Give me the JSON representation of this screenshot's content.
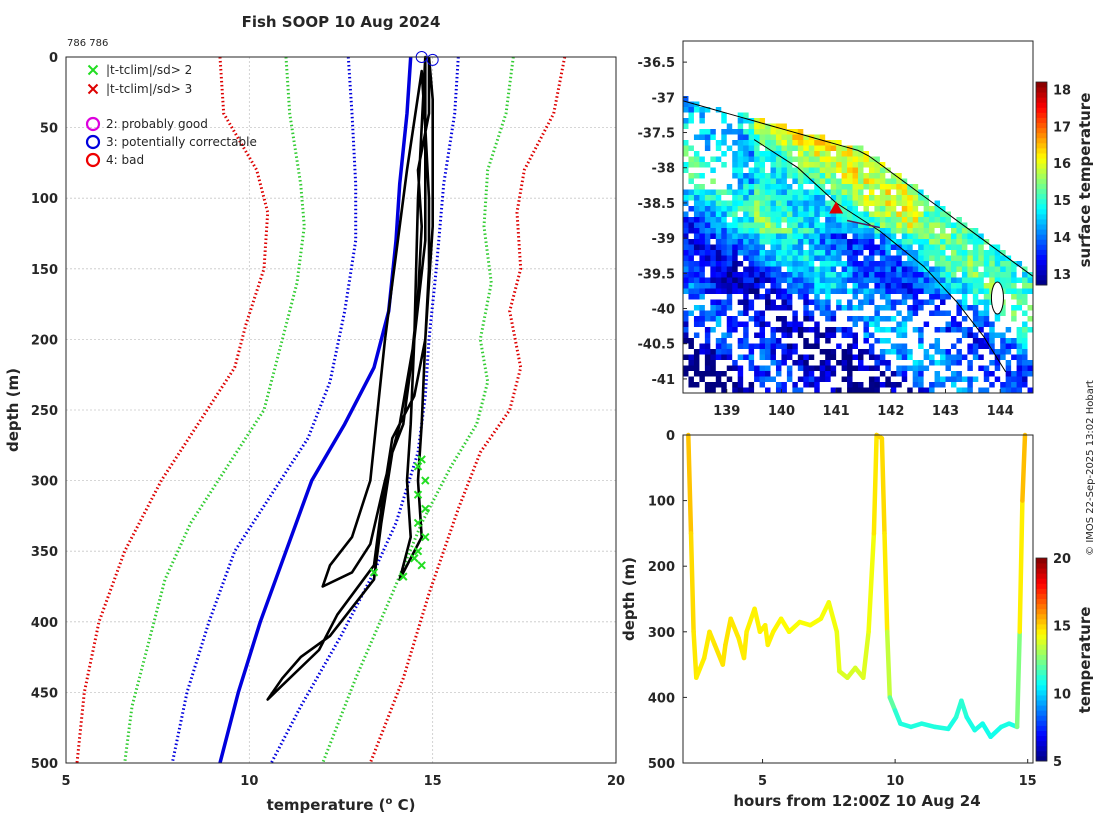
{
  "chart_data": [
    {
      "type": "line",
      "title": "Fish SOOP 10 Aug 2024",
      "subtitle": "786 786",
      "xlabel": "temperature (",
      "xlabel_sup": "o",
      "xlabel_end": " C)",
      "ylabel": "depth (m)",
      "xlim": [
        5,
        20
      ],
      "ylim": [
        500,
        0
      ],
      "xticks": [
        "5",
        "10",
        "15",
        "20"
      ],
      "yticks": [
        "0",
        "50",
        "100",
        "150",
        "200",
        "250",
        "300",
        "350",
        "400",
        "450",
        "500"
      ],
      "legend": [
        {
          "label": "|t-tclim|/sd> 2",
          "marker": "x",
          "color": "#22dd22"
        },
        {
          "label": "|t-tclim|/sd> 3",
          "marker": "x",
          "color": "#dd0000"
        },
        {
          "label": "2: probably good",
          "marker": "o",
          "color": "#dd00dd"
        },
        {
          "label": "3: potentially correctable",
          "marker": "o",
          "color": "#0000dd"
        },
        {
          "label": "4: bad",
          "marker": "o",
          "color": "#ee0000"
        }
      ],
      "series": [
        {
          "name": "clim -3sd",
          "color": "#dd0000",
          "style": "dotted",
          "points": [
            [
              9.2,
              0
            ],
            [
              9.3,
              40
            ],
            [
              10.2,
              80
            ],
            [
              10.5,
              110
            ],
            [
              10.4,
              150
            ],
            [
              9.9,
              190
            ],
            [
              9.6,
              220
            ],
            [
              8.6,
              260
            ],
            [
              7.6,
              300
            ],
            [
              6.6,
              350
            ],
            [
              5.9,
              400
            ],
            [
              5.5,
              450
            ],
            [
              5.3,
              500
            ]
          ]
        },
        {
          "name": "clim -2sd",
          "color": "#33cc33",
          "style": "dotted",
          "points": [
            [
              11.0,
              0
            ],
            [
              11.1,
              40
            ],
            [
              11.4,
              90
            ],
            [
              11.5,
              120
            ],
            [
              11.3,
              160
            ],
            [
              10.8,
              210
            ],
            [
              10.4,
              250
            ],
            [
              9.4,
              290
            ],
            [
              8.4,
              330
            ],
            [
              7.7,
              370
            ],
            [
              7.2,
              420
            ],
            [
              6.8,
              460
            ],
            [
              6.6,
              500
            ]
          ]
        },
        {
          "name": "clim -1sd",
          "color": "#0000dd",
          "style": "dotted",
          "points": [
            [
              12.7,
              0
            ],
            [
              12.8,
              40
            ],
            [
              12.9,
              90
            ],
            [
              12.9,
              130
            ],
            [
              12.6,
              180
            ],
            [
              12.2,
              230
            ],
            [
              11.6,
              270
            ],
            [
              10.6,
              310
            ],
            [
              9.6,
              350
            ],
            [
              8.9,
              400
            ],
            [
              8.3,
              450
            ],
            [
              7.9,
              500
            ]
          ]
        },
        {
          "name": "climatology",
          "color": "#0000dd",
          "style": "solid",
          "points": [
            [
              14.4,
              0
            ],
            [
              14.3,
              40
            ],
            [
              14.1,
              90
            ],
            [
              14.0,
              130
            ],
            [
              13.8,
              180
            ],
            [
              13.4,
              220
            ],
            [
              12.6,
              260
            ],
            [
              11.7,
              300
            ],
            [
              11.0,
              350
            ],
            [
              10.3,
              400
            ],
            [
              9.7,
              450
            ],
            [
              9.2,
              500
            ]
          ]
        },
        {
          "name": "clim +1sd",
          "color": "#0000dd",
          "style": "dotted",
          "points": [
            [
              15.7,
              0
            ],
            [
              15.6,
              40
            ],
            [
              15.3,
              90
            ],
            [
              15.1,
              150
            ],
            [
              14.9,
              200
            ],
            [
              14.8,
              240
            ],
            [
              14.6,
              280
            ],
            [
              14.0,
              330
            ],
            [
              13.3,
              370
            ],
            [
              12.5,
              410
            ],
            [
              11.4,
              460
            ],
            [
              10.6,
              500
            ]
          ]
        },
        {
          "name": "clim +2sd",
          "color": "#33cc33",
          "style": "dotted",
          "points": [
            [
              17.2,
              0
            ],
            [
              17.0,
              40
            ],
            [
              16.5,
              80
            ],
            [
              16.4,
              120
            ],
            [
              16.6,
              160
            ],
            [
              16.3,
              200
            ],
            [
              16.5,
              230
            ],
            [
              16.2,
              260
            ],
            [
              15.5,
              290
            ],
            [
              14.7,
              330
            ],
            [
              13.9,
              380
            ],
            [
              12.9,
              440
            ],
            [
              12.0,
              500
            ]
          ]
        },
        {
          "name": "clim +3sd",
          "color": "#dd0000",
          "style": "dotted",
          "points": [
            [
              18.6,
              0
            ],
            [
              18.3,
              40
            ],
            [
              17.5,
              80
            ],
            [
              17.3,
              110
            ],
            [
              17.4,
              150
            ],
            [
              17.1,
              180
            ],
            [
              17.4,
              220
            ],
            [
              17.1,
              250
            ],
            [
              16.3,
              280
            ],
            [
              15.7,
              320
            ],
            [
              14.9,
              380
            ],
            [
              14.2,
              440
            ],
            [
              13.3,
              500
            ]
          ]
        },
        {
          "name": "profile",
          "color": "#000000",
          "style": "solid",
          "points": [
            [
              14.9,
              2
            ],
            [
              14.9,
              40
            ],
            [
              14.6,
              80
            ],
            [
              14.7,
              120
            ],
            [
              14.6,
              170
            ],
            [
              14.4,
              220
            ],
            [
              14.2,
              260
            ],
            [
              13.9,
              280
            ],
            [
              13.6,
              330
            ],
            [
              13.4,
              370
            ],
            [
              12.8,
              390
            ],
            [
              12.2,
              410
            ],
            [
              11.4,
              425
            ],
            [
              10.9,
              440
            ],
            [
              10.5,
              455
            ],
            [
              10.9,
              445
            ],
            [
              11.9,
              420
            ],
            [
              12.4,
              395
            ],
            [
              13.4,
              360
            ],
            [
              13.6,
              320
            ],
            [
              13.9,
              270
            ],
            [
              14.5,
              240
            ],
            [
              14.8,
              200
            ],
            [
              14.9,
              150
            ],
            [
              14.9,
              100
            ],
            [
              14.8,
              50
            ],
            [
              14.7,
              10
            ],
            [
              14.3,
              80
            ],
            [
              13.7,
              200
            ],
            [
              13.3,
              300
            ],
            [
              12.8,
              340
            ],
            [
              12.2,
              360
            ],
            [
              12.0,
              375
            ],
            [
              12.8,
              365
            ],
            [
              13.3,
              345
            ],
            [
              13.7,
              300
            ],
            [
              14.1,
              260
            ],
            [
              14.5,
              200
            ],
            [
              14.8,
              130
            ],
            [
              14.8,
              60
            ],
            [
              14.8,
              0
            ],
            [
              14.6,
              100
            ],
            [
              14.5,
              200
            ],
            [
              14.4,
              260
            ],
            [
              14.3,
              300
            ],
            [
              14.4,
              340
            ],
            [
              14.1,
              370
            ],
            [
              14.7,
              340
            ],
            [
              14.6,
              300
            ],
            [
              14.7,
              260
            ],
            [
              14.8,
              200
            ],
            [
              15.0,
              120
            ],
            [
              15.0,
              30
            ],
            [
              14.9,
              0
            ]
          ]
        }
      ],
      "flag_x2": [
        [
          13.4,
          365
        ],
        [
          14.2,
          368
        ],
        [
          14.6,
          290
        ],
        [
          14.8,
          300
        ],
        [
          14.6,
          310
        ],
        [
          14.8,
          320
        ],
        [
          14.6,
          330
        ],
        [
          14.8,
          340
        ],
        [
          14.6,
          350
        ],
        [
          14.5,
          355
        ],
        [
          14.7,
          360
        ],
        [
          14.7,
          285
        ]
      ],
      "flag_circles": [
        [
          14.7,
          0
        ],
        [
          15.0,
          2
        ]
      ]
    },
    {
      "type": "heatmap",
      "xlim": [
        138.2,
        144.6
      ],
      "ylim": [
        -41.2,
        -36.2
      ],
      "xticks": [
        "139",
        "140",
        "141",
        "142",
        "143",
        "144"
      ],
      "yticks": [
        "-36.5",
        "-37",
        "-37.5",
        "-38",
        "-38.5",
        "-39",
        "-39.5",
        "-40",
        "-40.5",
        "-41"
      ],
      "colorbar_label": "surface temperature",
      "colorbar_range": [
        12.7,
        18.2
      ],
      "colorbar_ticks": [
        "13",
        "14",
        "15",
        "16",
        "17",
        "18"
      ],
      "marker": {
        "lon": 141.0,
        "lat": -38.58,
        "color": "#dd0000"
      },
      "track": [
        [
          141.2,
          -38.75
        ],
        [
          141.8,
          -38.85
        ]
      ]
    },
    {
      "type": "line",
      "xlabel": "hours from 12:00Z 10 Aug 24",
      "ylabel": "depth (m)",
      "xlim": [
        2.0,
        15.2
      ],
      "ylim": [
        500,
        0
      ],
      "xticks": [
        "5",
        "10",
        "15"
      ],
      "yticks": [
        "0",
        "100",
        "200",
        "300",
        "400",
        "500"
      ],
      "colorbar_label": "temperature",
      "colorbar_range": [
        5,
        20
      ],
      "colorbar_ticks": [
        "5",
        "10",
        "15",
        "20"
      ],
      "series": [
        {
          "name": "depth track",
          "color_by": "temperature",
          "points": [
            [
              2.2,
              0,
              15.5
            ],
            [
              2.3,
              150,
              15.0
            ],
            [
              2.4,
              300,
              14.8
            ],
            [
              2.5,
              370,
              14.6
            ],
            [
              2.8,
              340,
              14.6
            ],
            [
              3.0,
              300,
              14.7
            ],
            [
              3.2,
              320,
              14.7
            ],
            [
              3.5,
              350,
              14.8
            ],
            [
              3.6,
              320,
              14.7
            ],
            [
              3.8,
              280,
              14.8
            ],
            [
              4.1,
              310,
              14.6
            ],
            [
              4.3,
              340,
              14.7
            ],
            [
              4.4,
              300,
              14.6
            ],
            [
              4.7,
              265,
              14.5
            ],
            [
              4.9,
              300,
              14.6
            ],
            [
              5.1,
              290,
              14.5
            ],
            [
              5.2,
              320,
              14.6
            ],
            [
              5.4,
              300,
              14.5
            ],
            [
              5.7,
              280,
              14.5
            ],
            [
              6.0,
              300,
              14.3
            ],
            [
              6.4,
              285,
              14.3
            ],
            [
              6.8,
              290,
              14.3
            ],
            [
              7.2,
              280,
              14.3
            ],
            [
              7.5,
              255,
              14.2
            ],
            [
              7.8,
              300,
              14.2
            ],
            [
              7.9,
              360,
              13.9
            ],
            [
              8.2,
              370,
              13.8
            ],
            [
              8.5,
              355,
              13.8
            ],
            [
              8.8,
              370,
              13.8
            ],
            [
              9.0,
              300,
              14.0
            ],
            [
              9.2,
              150,
              14.4
            ],
            [
              9.3,
              0,
              15.0
            ],
            [
              9.5,
              5,
              15.0
            ],
            [
              9.6,
              150,
              14.8
            ],
            [
              9.7,
              300,
              14.5
            ],
            [
              9.8,
              400,
              12.5
            ],
            [
              10.0,
              420,
              11.5
            ],
            [
              10.2,
              440,
              11.0
            ],
            [
              10.6,
              445,
              11.2
            ],
            [
              11.0,
              440,
              11.0
            ],
            [
              11.5,
              445,
              11.2
            ],
            [
              12.0,
              448,
              11.0
            ],
            [
              12.3,
              430,
              11.0
            ],
            [
              12.5,
              405,
              11.5
            ],
            [
              12.7,
              430,
              11.0
            ],
            [
              13.0,
              450,
              11.0
            ],
            [
              13.3,
              440,
              11.0
            ],
            [
              13.6,
              460,
              10.8
            ],
            [
              14.0,
              445,
              11.0
            ],
            [
              14.3,
              440,
              11.0
            ],
            [
              14.6,
              445,
              11.0
            ],
            [
              14.7,
              300,
              14.0
            ],
            [
              14.8,
              100,
              15.2
            ],
            [
              14.9,
              0,
              15.5
            ]
          ]
        }
      ]
    }
  ],
  "credit": "© IMOS 22-Sep-2025 13:02 Hobart"
}
